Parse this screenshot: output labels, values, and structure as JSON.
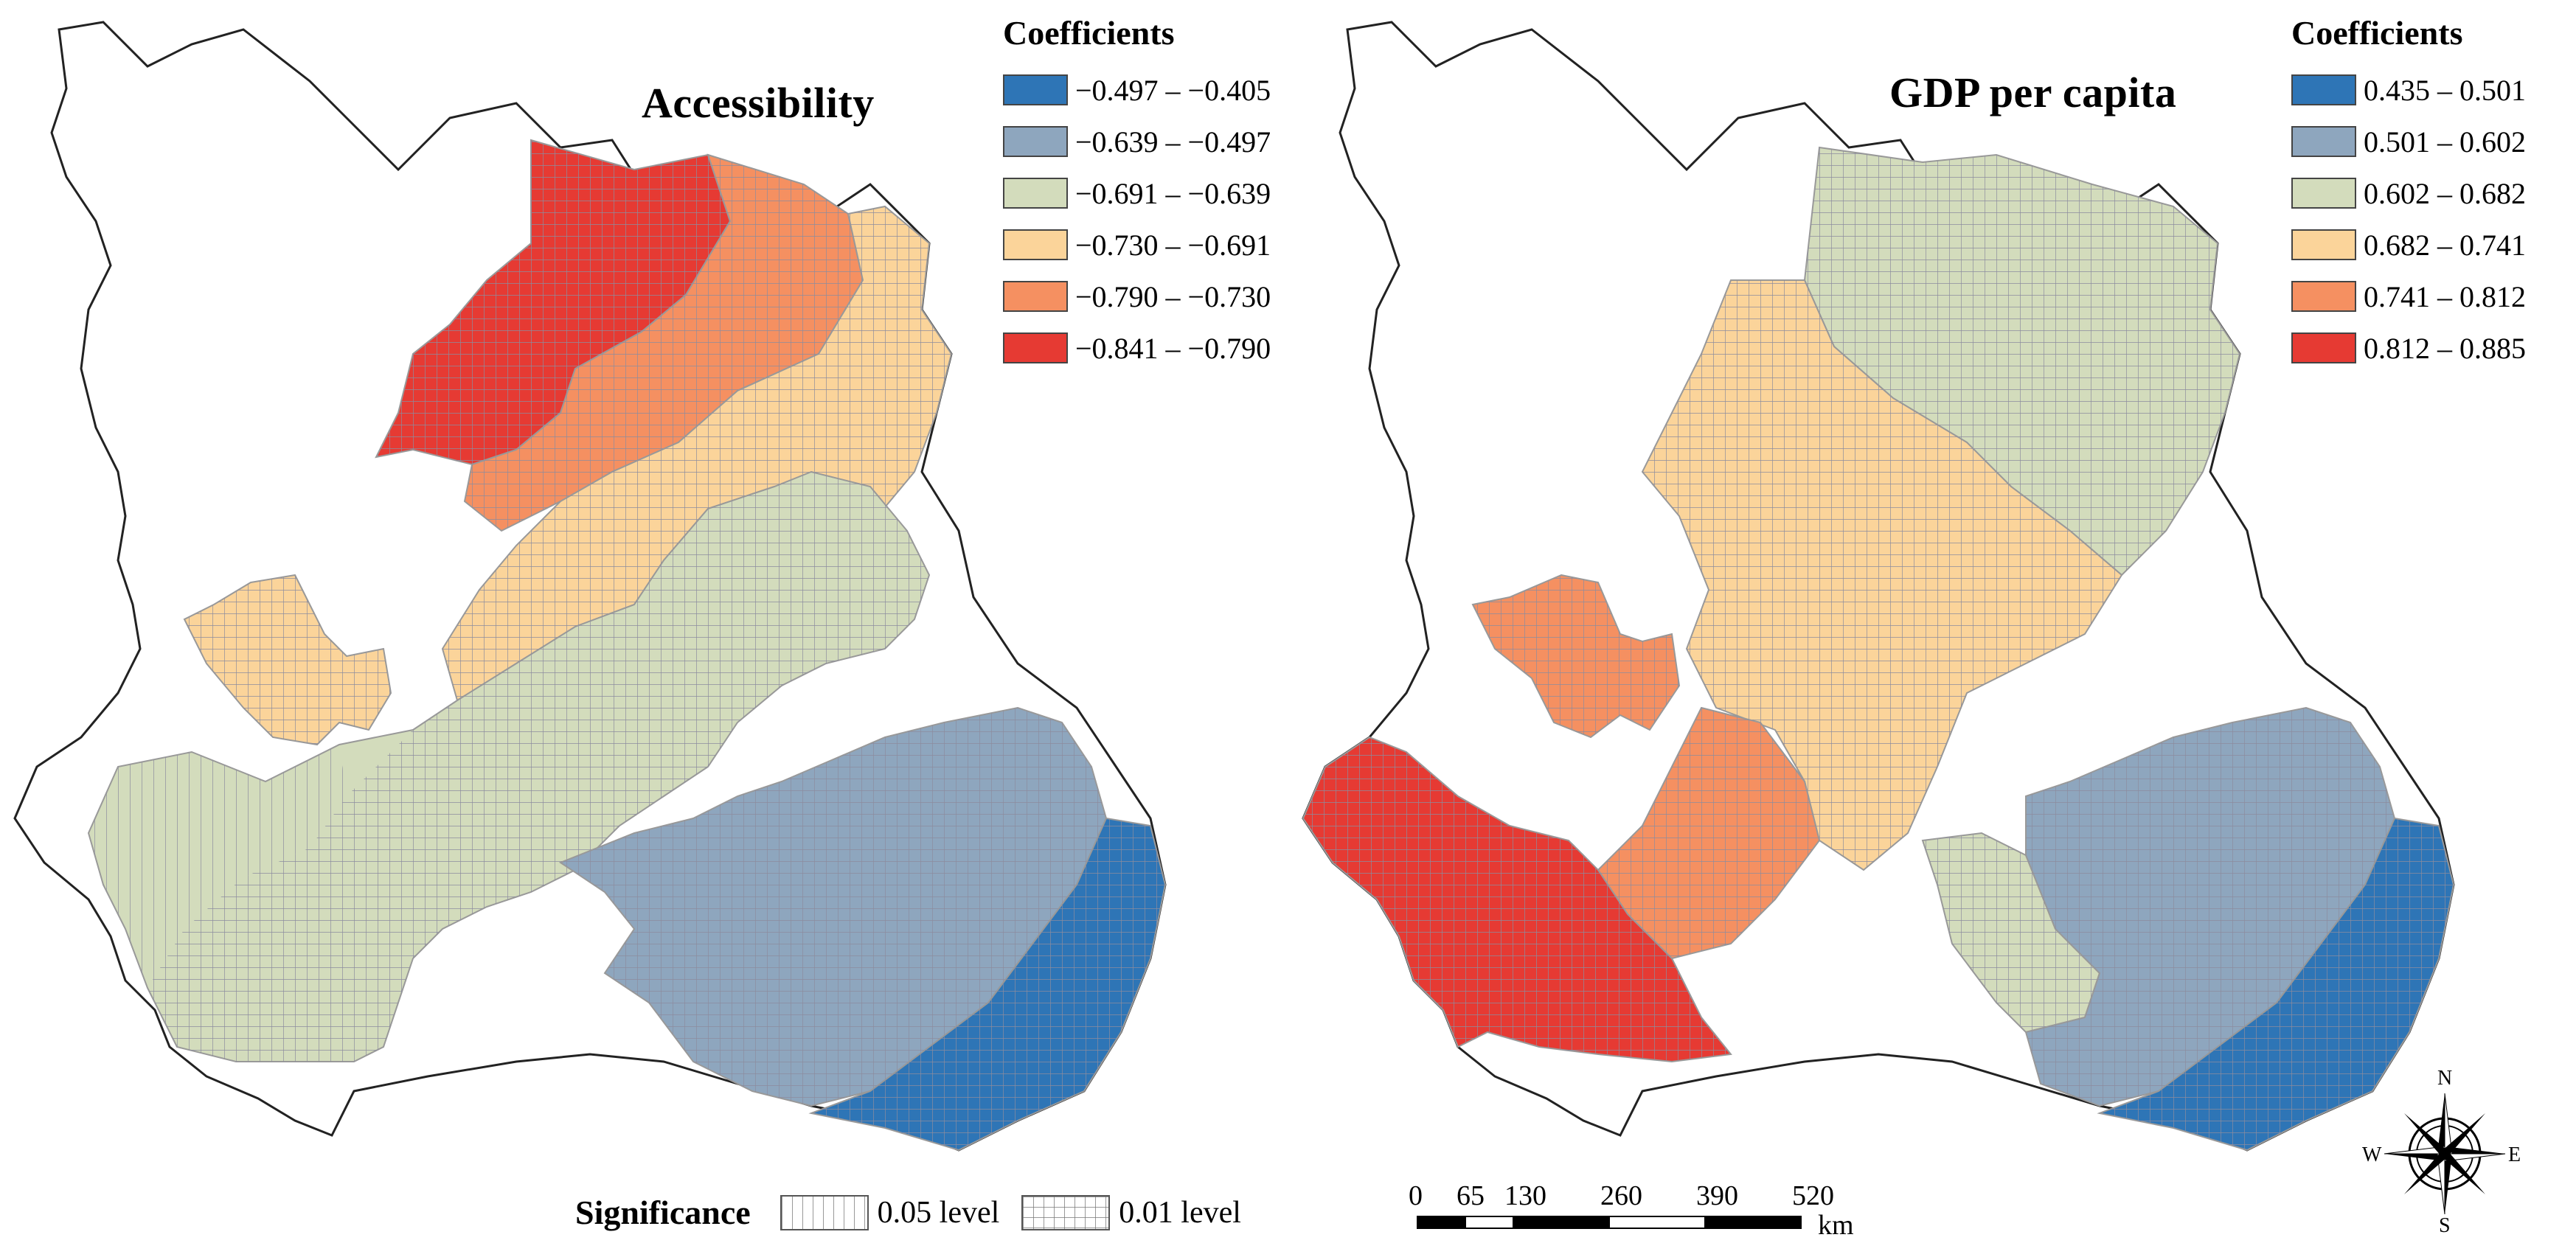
{
  "maps": [
    {
      "title": "Accessibility",
      "legend_title": "Coefficients",
      "classes": [
        {
          "label": "−0.497 – −0.405",
          "color": "#2e75b6"
        },
        {
          "label": "−0.639 – −0.497",
          "color": "#8ea6be"
        },
        {
          "label": "−0.691 – −0.639",
          "color": "#d3dcbc"
        },
        {
          "label": "−0.730 – −0.691",
          "color": "#fbd49a"
        },
        {
          "label": "−0.790 – −0.730",
          "color": "#f59061"
        },
        {
          "label": "−0.841 – −0.790",
          "color": "#e63a33"
        }
      ]
    },
    {
      "title": "GDP per capita",
      "legend_title": "Coefficients",
      "classes": [
        {
          "label": "0.435 – 0.501",
          "color": "#2e75b6"
        },
        {
          "label": "0.501 – 0.602",
          "color": "#8ea6be"
        },
        {
          "label": "0.602 – 0.682",
          "color": "#d3dcbc"
        },
        {
          "label": "0.682 – 0.741",
          "color": "#fbd49a"
        },
        {
          "label": "0.741 – 0.812",
          "color": "#f59061"
        },
        {
          "label": "0.812 – 0.885",
          "color": "#e63a33"
        }
      ]
    }
  ],
  "significance": {
    "title": "Significance",
    "levels": [
      {
        "label": "0.05 level",
        "pattern": "vertical"
      },
      {
        "label": "0.01 level",
        "pattern": "grid"
      }
    ]
  },
  "scale": {
    "ticks": [
      "0",
      "65",
      "130",
      "260",
      "390",
      "520"
    ],
    "tick_km": [
      0,
      65,
      130,
      260,
      390,
      520
    ],
    "unit": "km"
  },
  "compass": {
    "n": "N",
    "s": "S",
    "e": "E",
    "w": "W"
  }
}
